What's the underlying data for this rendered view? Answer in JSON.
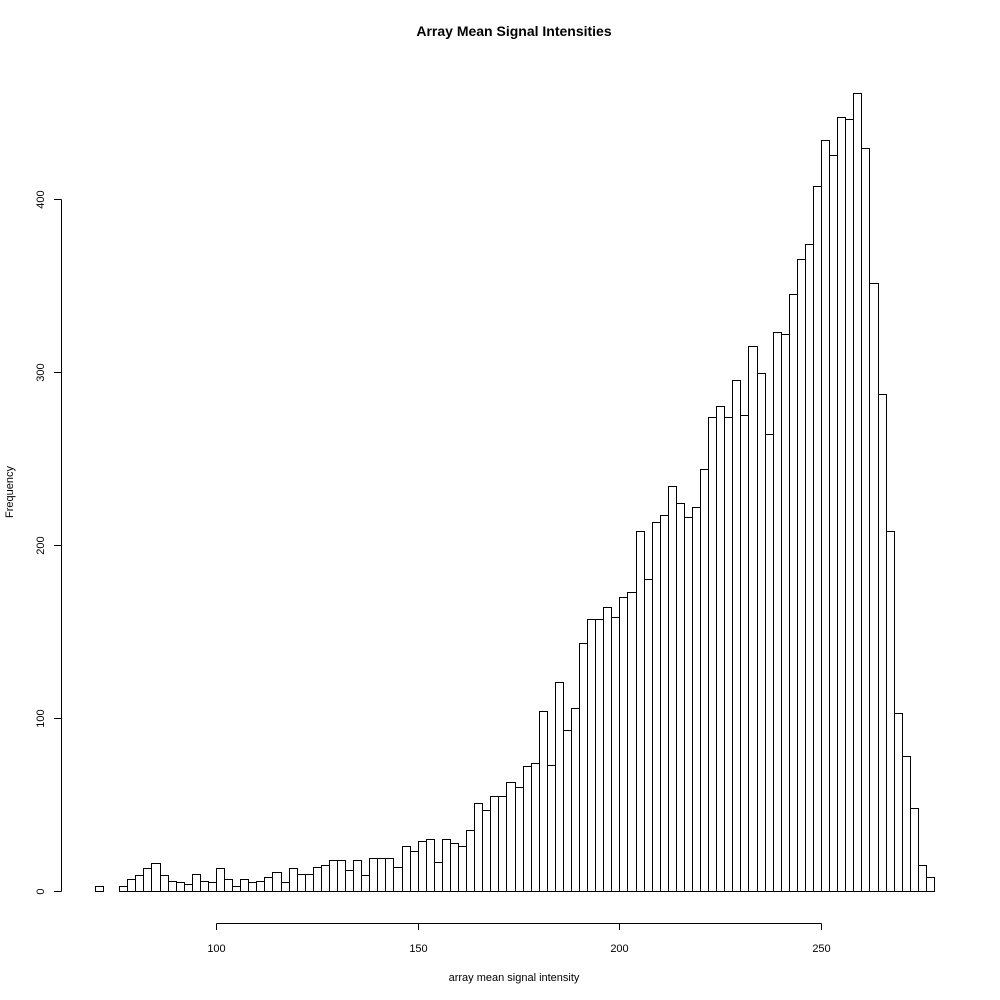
{
  "chart_data": {
    "type": "bar",
    "title": "Array Mean Signal Intensities",
    "xlabel": "array mean signal intensity",
    "ylabel": "Frequency",
    "bin_start": 70,
    "bin_width": 2,
    "values": [
      3,
      0,
      0,
      3,
      7,
      9,
      13,
      16,
      9,
      6,
      5,
      4,
      10,
      6,
      5,
      13,
      7,
      3,
      7,
      5,
      6,
      8,
      11,
      5,
      13,
      10,
      10,
      14,
      15,
      18,
      18,
      12,
      18,
      9,
      19,
      19,
      19,
      14,
      26,
      23,
      29,
      30,
      17,
      30,
      28,
      26,
      35,
      51,
      47,
      55,
      55,
      63,
      60,
      72,
      74,
      104,
      73,
      121,
      93,
      106,
      143,
      157,
      157,
      164,
      158,
      170,
      173,
      208,
      180,
      213,
      217,
      234,
      224,
      216,
      222,
      244,
      274,
      280,
      274,
      295,
      275,
      315,
      299,
      264,
      323,
      322,
      345,
      365,
      374,
      407,
      434,
      425,
      447,
      446,
      461,
      429,
      351,
      287,
      208,
      103,
      78,
      48,
      15,
      8
    ],
    "xlim": [
      70,
      278
    ],
    "ylim": [
      0,
      461
    ],
    "x_ticks": [
      100,
      150,
      200,
      250
    ],
    "y_ticks": [
      0,
      100,
      200,
      300,
      400
    ],
    "grid": false
  }
}
